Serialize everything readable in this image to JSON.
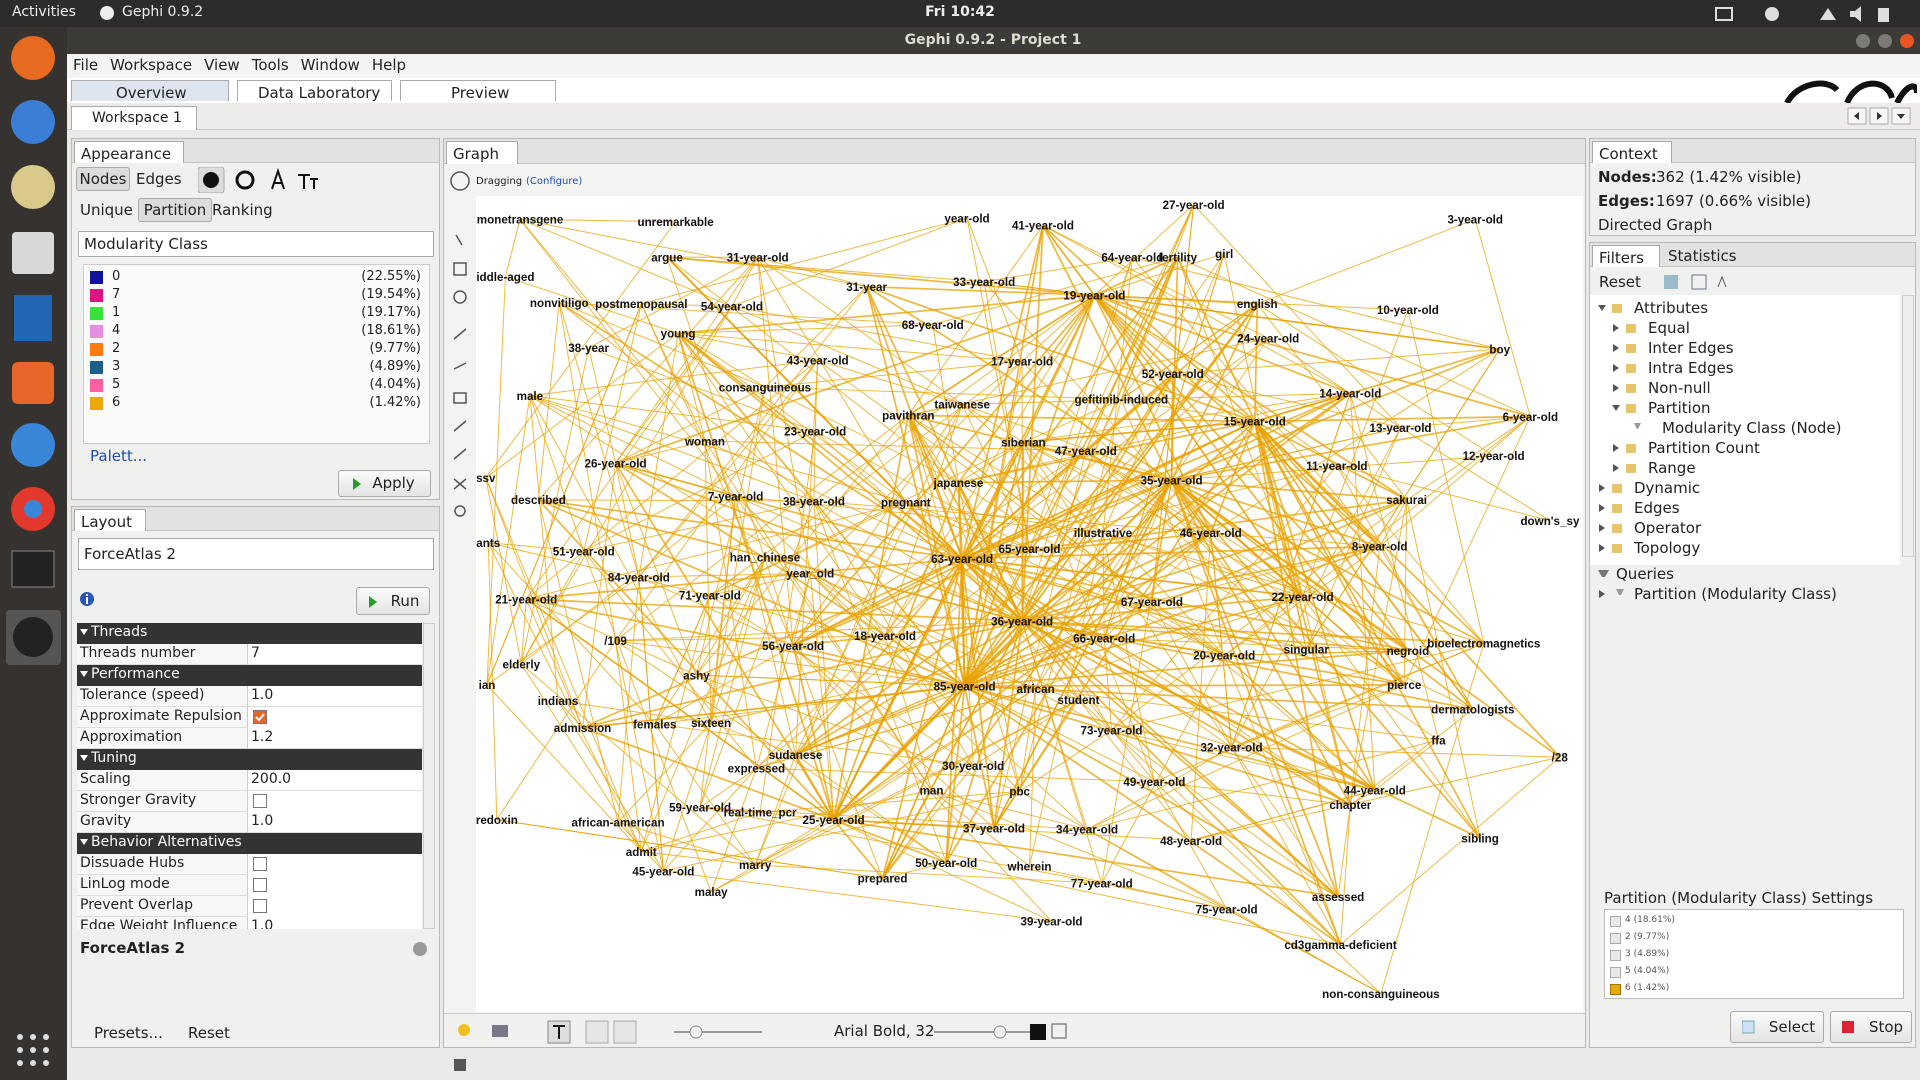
{
  "topbar": {
    "activities": "Activities",
    "app": "Gephi 0.9.2",
    "clock": "Fri 10:42"
  },
  "window_title": "Gephi 0.9.2 - Project 1",
  "menu": [
    "File",
    "Workspace",
    "View",
    "Tools",
    "Window",
    "Help"
  ],
  "tabs": [
    "Overview",
    "Data Laboratory",
    "Preview"
  ],
  "workspace": "Workspace 1",
  "appearance": {
    "title": "Appearance",
    "subtabs": [
      "Nodes",
      "Edges"
    ],
    "modes": [
      "Unique",
      "Partition",
      "Ranking"
    ],
    "attribute": "Modularity Class",
    "partitions": [
      {
        "label": "0",
        "percent": "(22.55%)",
        "color": "#12129c"
      },
      {
        "label": "7",
        "percent": "(19.54%)",
        "color": "#d8157e"
      },
      {
        "label": "1",
        "percent": "(19.17%)",
        "color": "#33e53a"
      },
      {
        "label": "4",
        "percent": "(18.61%)",
        "color": "#e58ee0"
      },
      {
        "label": "2",
        "percent": "(9.77%)",
        "color": "#ff7b10"
      },
      {
        "label": "3",
        "percent": "(4.89%)",
        "color": "#1b5f8c"
      },
      {
        "label": "5",
        "percent": "(4.04%)",
        "color": "#ff5fa2"
      },
      {
        "label": "6",
        "percent": "(1.42%)",
        "color": "#e9a90c"
      }
    ],
    "palette": "Palett...",
    "apply": "Apply"
  },
  "layout": {
    "title": "Layout",
    "algorithm": "ForceAtlas 2",
    "run": "Run",
    "sections": [
      {
        "name": "Threads",
        "props": [
          {
            "name": "Threads number",
            "value": "7"
          }
        ]
      },
      {
        "name": "Performance",
        "props": [
          {
            "name": "Tolerance (speed)",
            "value": "1.0"
          },
          {
            "name": "Approximate Repulsion",
            "checked": true
          },
          {
            "name": "Approximation",
            "value": "1.2"
          }
        ]
      },
      {
        "name": "Tuning",
        "props": [
          {
            "name": "Scaling",
            "value": "200.0"
          },
          {
            "name": "Stronger Gravity",
            "checked": false
          },
          {
            "name": "Gravity",
            "value": "1.0"
          }
        ]
      },
      {
        "name": "Behavior Alternatives",
        "props": [
          {
            "name": "Dissuade Hubs",
            "checked": false
          },
          {
            "name": "LinLog mode",
            "checked": false
          },
          {
            "name": "Prevent Overlap",
            "checked": false
          },
          {
            "name": "Edge Weight Influence",
            "value": "1.0"
          }
        ]
      }
    ],
    "footer_name": "ForceAtlas 2",
    "presets": "Presets...",
    "reset": "Reset"
  },
  "graph": {
    "title": "Graph",
    "mode": "Dragging",
    "configure": "(Configure)",
    "font": "Arial Bold, 32",
    "edge_color": "#e8a200",
    "node_labels": [
      "monetransgene",
      "unremarkable",
      "year-old",
      "41-year-old",
      "27-year-old",
      "3-year-old",
      "argue",
      "31-year-old",
      "64-year-old",
      "fertility",
      "girl",
      "iddle-aged",
      "31-year",
      "33-year-old",
      "19-year-old",
      "nonvitiligo",
      "postmenopausal",
      "54-year-old",
      "english",
      "10-year-old",
      "68-year-old",
      "young",
      "24-year-old",
      "38-year",
      "boy",
      "43-year-old",
      "17-year-old",
      "52-year-old",
      "consanguineous",
      "male",
      "14-year-old",
      "gefitinib-induced",
      "taiwanese",
      "pavithran",
      "15-year-old",
      "13-year-old",
      "6-year-old",
      "woman",
      "23-year-old",
      "siberian",
      "47-year-old",
      "12-year-old",
      "26-year-old",
      "11-year-old",
      "ssv",
      "japanese",
      "35-year-old",
      "7-year-old",
      "described",
      "38-year-old",
      "pregnant",
      "sakurai",
      "down's_sy",
      "illustrative",
      "46-year-old",
      "ants",
      "51-year-old",
      "8-year-old",
      "han_chinese",
      "65-year-old",
      "63-year-old",
      "year_old",
      "84-year-old",
      "21-year-old",
      "71-year-old",
      "67-year-old",
      "22-year-old",
      "36-year-old",
      "/109",
      "56-year-old",
      "18-year-old",
      "66-year-old",
      "bioelectromagnetics",
      "singular",
      "20-year-old",
      "negroid",
      "elderly",
      "ashy",
      "85-year-old",
      "african",
      "ian",
      "pierce",
      "indians",
      "student",
      "dermatologists",
      "females",
      "sixteen",
      "admission",
      "73-year-old",
      "ffa",
      "sudanese",
      "32-year-old",
      "expressed",
      "/28",
      "30-year-old",
      "49-year-old",
      "44-year-old",
      "man",
      "pbc",
      "chapter",
      "59-year-old",
      "real-time_pcr",
      "25-year-old",
      "redoxin",
      "african-american",
      "37-year-old",
      "34-year-old",
      "48-year-old",
      "sibling",
      "admit",
      "marry",
      "50-year-old",
      "wherein",
      "45-year-old",
      "prepared",
      "77-year-old",
      "malay",
      "assessed",
      "75-year-old",
      "39-year-old",
      "cd3gamma-deficient",
      "non-consanguineous"
    ]
  },
  "context": {
    "title": "Context",
    "nodes_label": "Nodes:",
    "nodes_value": "362 (1.42% visible)",
    "edges_label": "Edges:",
    "edges_value": "1697 (0.66% visible)",
    "kind": "Directed Graph"
  },
  "filters": {
    "title": "Filters",
    "stats_title": "Statistics",
    "reset": "Reset",
    "tree": [
      {
        "label": "Attributes",
        "children": [
          {
            "label": "Equal"
          },
          {
            "label": "Inter Edges"
          },
          {
            "label": "Intra Edges"
          },
          {
            "label": "Non-null"
          },
          {
            "label": "Partition",
            "children": [
              {
                "label": "Modularity Class (Node)"
              }
            ]
          },
          {
            "label": "Partition Count"
          },
          {
            "label": "Range"
          }
        ]
      },
      {
        "label": "Dynamic"
      },
      {
        "label": "Edges"
      },
      {
        "label": "Operator"
      },
      {
        "label": "Topology"
      }
    ],
    "queries": {
      "label": "Queries",
      "children": [
        {
          "label": "Partition (Modularity Class)"
        }
      ]
    },
    "settings_title": "Partition (Modularity Class) Settings",
    "settings": [
      {
        "label": "4 (18.61%)",
        "color": "#e58ee0",
        "checked": false
      },
      {
        "label": "2 (9.77%)",
        "color": "#ff7b10",
        "checked": false
      },
      {
        "label": "3 (4.89%)",
        "color": "#1b5f8c",
        "checked": false
      },
      {
        "label": "5 (4.04%)",
        "color": "#ff5fa2",
        "checked": false
      },
      {
        "label": "6 (1.42%)",
        "color": "#e9a90c",
        "checked": true
      }
    ],
    "select": "Select",
    "stop": "Stop"
  }
}
